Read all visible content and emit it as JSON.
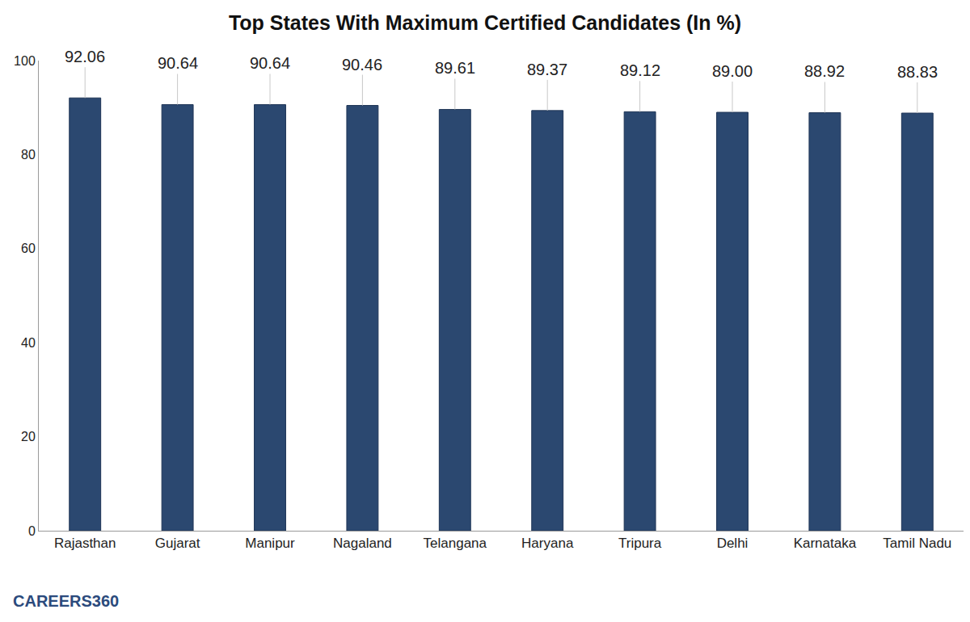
{
  "chart_data": {
    "type": "bar",
    "title": "Top States With Maximum Certified Candidates (In %)",
    "categories": [
      "Rajasthan",
      "Gujarat",
      "Manipur",
      "Nagaland",
      "Telangana",
      "Haryana",
      "Tripura",
      "Delhi",
      "Karnataka",
      "Tamil Nadu"
    ],
    "values": [
      92.06,
      90.64,
      90.64,
      90.46,
      89.61,
      89.37,
      89.12,
      89.0,
      88.92,
      88.83
    ],
    "value_labels": [
      "92.06",
      "90.64",
      "90.64",
      "90.46",
      "89.61",
      "89.37",
      "89.12",
      "89.00",
      "88.92",
      "88.83"
    ],
    "data_labels": true,
    "color": "#2b4870",
    "ylim": [
      0,
      100
    ],
    "yticks": [
      0,
      20,
      40,
      60,
      80,
      100
    ],
    "grid": false,
    "annotations": [
      "CAREERS360"
    ]
  }
}
